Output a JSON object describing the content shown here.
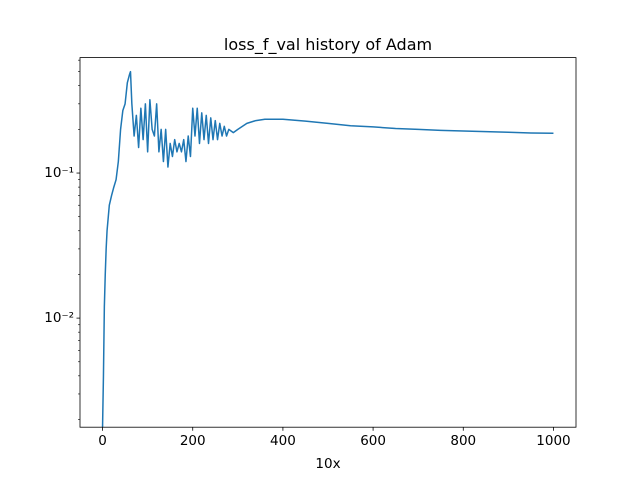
{
  "chart_data": {
    "type": "line",
    "title": "loss_f_val history of Adam",
    "x_label": "10x",
    "y_scale": "log",
    "xlim": [
      -50,
      1050
    ],
    "xticks": [
      0,
      200,
      400,
      600,
      800,
      1000
    ],
    "ylim": [
      0.00177,
      0.625
    ],
    "yticks": [
      {
        "value": 0.01,
        "label": "10⁻²"
      },
      {
        "value": 0.1,
        "label": "10⁻¹"
      }
    ],
    "yminor_ticks": [
      0.002,
      0.003,
      0.004,
      0.005,
      0.006,
      0.007,
      0.008,
      0.009,
      0.02,
      0.03,
      0.04,
      0.05,
      0.06,
      0.07,
      0.08,
      0.09,
      0.2,
      0.3,
      0.4,
      0.5,
      0.6
    ],
    "x": [
      0,
      2,
      4,
      6,
      8,
      10,
      15,
      20,
      25,
      30,
      35,
      40,
      45,
      50,
      55,
      60,
      62,
      65,
      70,
      75,
      80,
      85,
      90,
      95,
      100,
      105,
      110,
      115,
      120,
      125,
      130,
      135,
      140,
      145,
      150,
      155,
      160,
      165,
      170,
      175,
      180,
      185,
      190,
      195,
      200,
      205,
      210,
      215,
      220,
      225,
      230,
      235,
      240,
      245,
      250,
      255,
      260,
      265,
      270,
      275,
      280,
      290,
      300,
      320,
      340,
      360,
      400,
      450,
      500,
      550,
      600,
      650,
      700,
      750,
      800,
      850,
      900,
      950,
      1000
    ],
    "series": [
      {
        "name": "loss_f_val",
        "color": "#1f77b4",
        "values": [
          0.00177,
          0.004,
          0.012,
          0.02,
          0.03,
          0.04,
          0.06,
          0.07,
          0.08,
          0.09,
          0.12,
          0.2,
          0.27,
          0.3,
          0.42,
          0.48,
          0.5,
          0.3,
          0.18,
          0.25,
          0.15,
          0.28,
          0.17,
          0.3,
          0.14,
          0.32,
          0.2,
          0.18,
          0.3,
          0.14,
          0.2,
          0.12,
          0.2,
          0.11,
          0.16,
          0.13,
          0.17,
          0.14,
          0.16,
          0.14,
          0.17,
          0.12,
          0.18,
          0.13,
          0.28,
          0.18,
          0.28,
          0.16,
          0.26,
          0.17,
          0.25,
          0.16,
          0.24,
          0.17,
          0.23,
          0.17,
          0.22,
          0.18,
          0.21,
          0.18,
          0.2,
          0.19,
          0.2,
          0.22,
          0.23,
          0.235,
          0.235,
          0.228,
          0.22,
          0.212,
          0.208,
          0.203,
          0.2,
          0.197,
          0.195,
          0.193,
          0.191,
          0.189,
          0.188
        ]
      }
    ]
  }
}
